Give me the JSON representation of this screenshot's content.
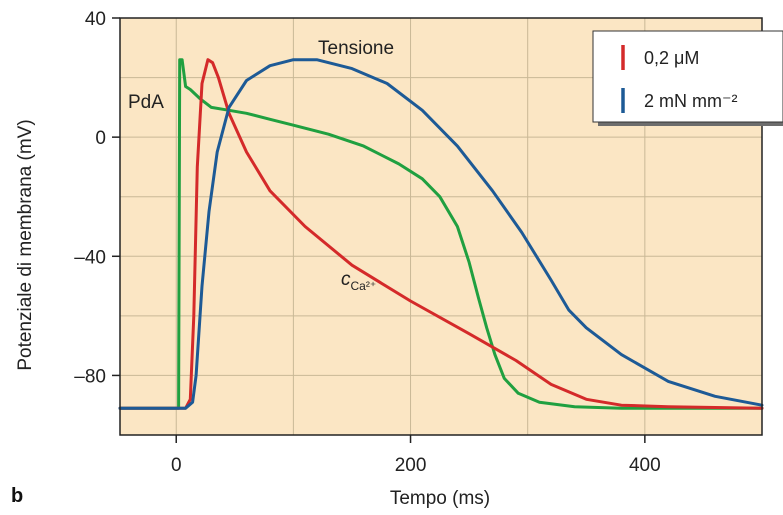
{
  "panel_label": "b",
  "chart_data": {
    "type": "line",
    "xlabel": "Tempo (ms)",
    "ylabel": "Potenziale di membrana (mV)",
    "xlim": [
      -48,
      500
    ],
    "ylim": [
      -100,
      40
    ],
    "xticks": [
      0,
      200,
      400
    ],
    "xtick_labels": [
      "0",
      "200",
      "400"
    ],
    "yticks": [
      40,
      0,
      -40,
      -80
    ],
    "ytick_labels": [
      "40",
      "0",
      "–40",
      "–80"
    ],
    "grid": true,
    "background": "#fbe6c4",
    "gridColor": "#c9b896",
    "legend_position": "top-right",
    "legend": [
      {
        "label": "0,2 μM",
        "color": "#d42a2a"
      },
      {
        "label": "2 mN mm⁻²",
        "color": "#1d5a96"
      }
    ],
    "annotations": {
      "pda": "PdA",
      "tension": "Tensione",
      "calcium_symbol": "c",
      "calcium_subscript": "Ca²⁺"
    },
    "series": [
      {
        "key": "pda",
        "color": "#20a040",
        "points": [
          [
            -48,
            -91
          ],
          [
            0,
            -91
          ],
          [
            2,
            -91
          ],
          [
            3,
            26
          ],
          [
            5,
            26
          ],
          [
            8,
            17
          ],
          [
            12,
            16
          ],
          [
            20,
            13
          ],
          [
            30,
            10
          ],
          [
            45,
            9
          ],
          [
            60,
            8
          ],
          [
            80,
            6
          ],
          [
            100,
            4
          ],
          [
            130,
            1
          ],
          [
            160,
            -3
          ],
          [
            190,
            -9
          ],
          [
            210,
            -14
          ],
          [
            225,
            -20
          ],
          [
            240,
            -30
          ],
          [
            250,
            -42
          ],
          [
            258,
            -54
          ],
          [
            265,
            -64
          ],
          [
            272,
            -73
          ],
          [
            280,
            -81
          ],
          [
            292,
            -86
          ],
          [
            310,
            -89
          ],
          [
            340,
            -90.5
          ],
          [
            380,
            -91
          ],
          [
            500,
            -91
          ]
        ]
      },
      {
        "key": "calcium",
        "color": "#d42a2a",
        "points": [
          [
            -48,
            -91
          ],
          [
            8,
            -91
          ],
          [
            12,
            -88
          ],
          [
            15,
            -60
          ],
          [
            18,
            -10
          ],
          [
            22,
            18
          ],
          [
            27,
            26
          ],
          [
            31,
            25
          ],
          [
            36,
            20
          ],
          [
            45,
            8
          ],
          [
            60,
            -5
          ],
          [
            80,
            -18
          ],
          [
            110,
            -30
          ],
          [
            150,
            -43
          ],
          [
            200,
            -55
          ],
          [
            250,
            -66
          ],
          [
            290,
            -75
          ],
          [
            320,
            -83
          ],
          [
            350,
            -88
          ],
          [
            380,
            -90
          ],
          [
            420,
            -90.5
          ],
          [
            500,
            -91
          ]
        ]
      },
      {
        "key": "tension",
        "color": "#1d5a96",
        "points": [
          [
            -48,
            -91
          ],
          [
            8,
            -91
          ],
          [
            14,
            -89
          ],
          [
            17,
            -80
          ],
          [
            22,
            -50
          ],
          [
            28,
            -25
          ],
          [
            35,
            -5
          ],
          [
            45,
            10
          ],
          [
            60,
            19
          ],
          [
            80,
            24
          ],
          [
            100,
            26
          ],
          [
            120,
            26
          ],
          [
            150,
            23
          ],
          [
            180,
            18
          ],
          [
            210,
            9
          ],
          [
            240,
            -3
          ],
          [
            270,
            -18
          ],
          [
            295,
            -32
          ],
          [
            320,
            -48
          ],
          [
            335,
            -58
          ],
          [
            350,
            -64
          ],
          [
            380,
            -73
          ],
          [
            420,
            -82
          ],
          [
            460,
            -87
          ],
          [
            500,
            -90
          ]
        ]
      }
    ]
  }
}
